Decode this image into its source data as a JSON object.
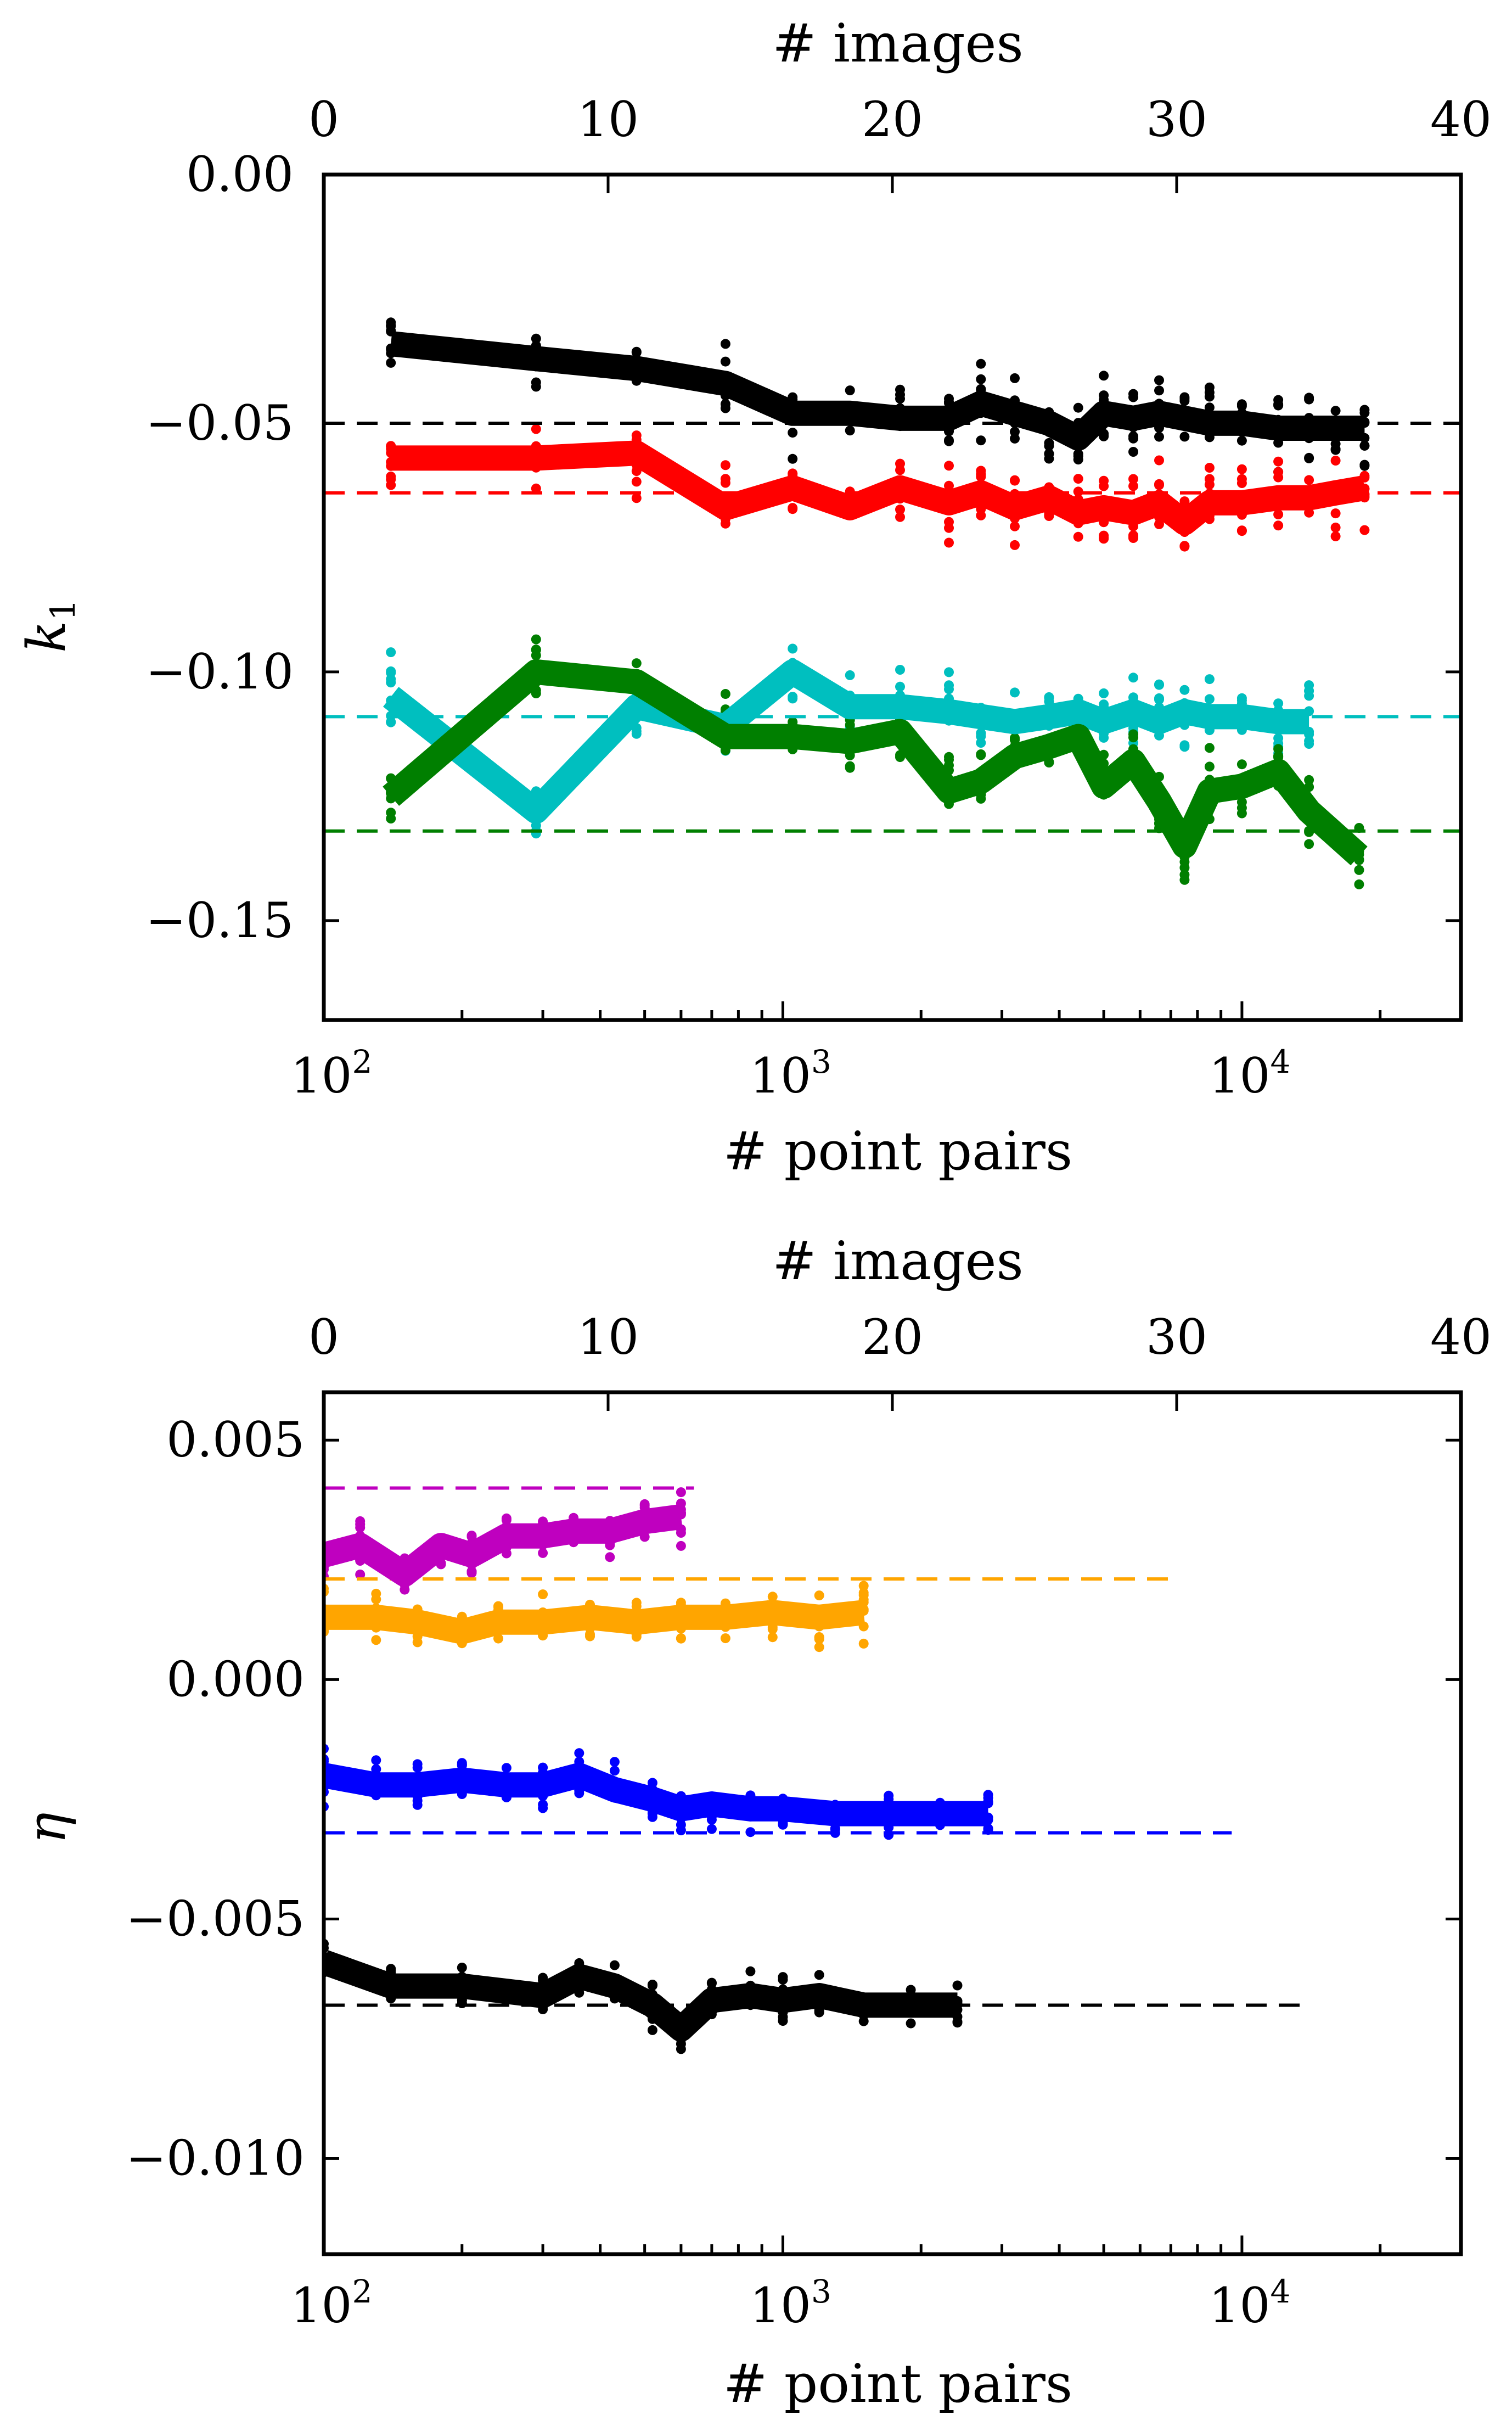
{
  "chart_data": [
    {
      "type": "line",
      "panel": "top",
      "ylabel": "k1",
      "ylabel_base": "k",
      "ylabel_sub": "1",
      "xlabel": "# point pairs",
      "top_xlabel": "# images",
      "xscale": "log",
      "xlim": [
        100,
        30000
      ],
      "ylim": [
        -0.17,
        0.0
      ],
      "yticks": [
        0.0,
        -0.05,
        -0.1,
        -0.15
      ],
      "ytick_labels": [
        "0.00",
        "−0.05",
        "−0.10",
        "−0.15"
      ],
      "xticks": [
        100,
        1000,
        10000
      ],
      "xtick_labels": [
        {
          "base": "10",
          "exp": "2"
        },
        {
          "base": "10",
          "exp": "3"
        },
        {
          "base": "10",
          "exp": "4"
        }
      ],
      "top_xlim": [
        0,
        40
      ],
      "top_xticks": [
        0,
        10,
        20,
        30,
        40
      ],
      "top_xtick_labels": [
        "0",
        "10",
        "20",
        "30",
        "40"
      ],
      "reference_lines": [
        {
          "color": "#000000",
          "y": -0.05
        },
        {
          "color": "#ff0000",
          "y": -0.064
        },
        {
          "color": "#00bfbf",
          "y": -0.109
        },
        {
          "color": "#007f00",
          "y": -0.132
        }
      ],
      "series": [
        {
          "name": "black",
          "color": "#000000",
          "x": [
            140,
            290,
            480,
            750,
            1050,
            1400,
            1800,
            2300,
            2700,
            3200,
            3800,
            4400,
            5000,
            5800,
            6600,
            7500,
            8500,
            10000,
            12000,
            14000,
            16000,
            18500
          ],
          "y": [
            -0.034,
            -0.037,
            -0.039,
            -0.042,
            -0.048,
            -0.048,
            -0.049,
            -0.049,
            -0.046,
            -0.048,
            -0.05,
            -0.053,
            -0.048,
            -0.049,
            -0.048,
            -0.049,
            -0.05,
            -0.05,
            -0.051,
            -0.051,
            -0.051,
            -0.051
          ]
        },
        {
          "name": "red",
          "color": "#ff0000",
          "x": [
            140,
            290,
            480,
            750,
            1050,
            1400,
            1800,
            2300,
            2700,
            3200,
            3800,
            4400,
            5000,
            5800,
            6600,
            7500,
            8500,
            10000,
            12000,
            14000,
            16000,
            18500
          ],
          "y": [
            -0.057,
            -0.057,
            -0.056,
            -0.067,
            -0.063,
            -0.067,
            -0.063,
            -0.066,
            -0.064,
            -0.067,
            -0.065,
            -0.068,
            -0.067,
            -0.068,
            -0.066,
            -0.07,
            -0.066,
            -0.066,
            -0.065,
            -0.065,
            -0.064,
            -0.063
          ]
        },
        {
          "name": "cyan",
          "color": "#00bfbf",
          "x": [
            140,
            290,
            480,
            750,
            1050,
            1400,
            1800,
            2300,
            2700,
            3200,
            3800,
            4400,
            5000,
            5800,
            6600,
            7500,
            8500,
            10000,
            12000,
            14000
          ],
          "y": [
            -0.105,
            -0.128,
            -0.107,
            -0.111,
            -0.1,
            -0.107,
            -0.107,
            -0.108,
            -0.109,
            -0.11,
            -0.109,
            -0.108,
            -0.11,
            -0.108,
            -0.11,
            -0.108,
            -0.109,
            -0.109,
            -0.11,
            -0.11
          ]
        },
        {
          "name": "green",
          "color": "#007f00",
          "x": [
            140,
            290,
            480,
            750,
            1050,
            1400,
            1800,
            2300,
            2700,
            3200,
            3800,
            4400,
            5000,
            5800,
            6600,
            7500,
            8500,
            10000,
            12000,
            14000,
            18000
          ],
          "y": [
            -0.125,
            -0.1,
            -0.102,
            -0.113,
            -0.113,
            -0.114,
            -0.112,
            -0.124,
            -0.122,
            -0.117,
            -0.115,
            -0.113,
            -0.123,
            -0.118,
            -0.126,
            -0.135,
            -0.124,
            -0.123,
            -0.12,
            -0.128,
            -0.137
          ]
        }
      ]
    },
    {
      "type": "line",
      "panel": "bottom",
      "ylabel": "η",
      "xlabel": "# point pairs",
      "top_xlabel": "# images",
      "xscale": "log",
      "xlim": [
        100,
        30000
      ],
      "ylim": [
        -0.012,
        0.006
      ],
      "yticks": [
        0.005,
        0.0,
        -0.005,
        -0.01
      ],
      "ytick_labels": [
        "0.005",
        "0.000",
        "−0.005",
        "−0.010"
      ],
      "xticks": [
        100,
        1000,
        10000
      ],
      "xtick_labels": [
        {
          "base": "10",
          "exp": "2"
        },
        {
          "base": "10",
          "exp": "3"
        },
        {
          "base": "10",
          "exp": "4"
        }
      ],
      "top_xlim": [
        0,
        40
      ],
      "top_xticks": [
        0,
        10,
        20,
        30,
        40
      ],
      "top_xtick_labels": [
        "0",
        "10",
        "20",
        "30",
        "40"
      ],
      "reference_lines": [
        {
          "color": "#bf00bf",
          "y": 0.004,
          "x_end": 640
        },
        {
          "color": "#ffa500",
          "y": 0.0021,
          "x_end": 7000
        },
        {
          "color": "#0000ff",
          "y": -0.0032,
          "x_end": 9500
        },
        {
          "color": "#000000",
          "y": -0.0068,
          "x_end": 13500
        }
      ],
      "series": [
        {
          "name": "magenta",
          "color": "#bf00bf",
          "x": [
            100,
            120,
            150,
            180,
            210,
            250,
            300,
            350,
            420,
            500,
            600
          ],
          "y": [
            0.0026,
            0.0028,
            0.0022,
            0.0028,
            0.0026,
            0.003,
            0.003,
            0.0031,
            0.0031,
            0.0033,
            0.0034
          ]
        },
        {
          "name": "orange",
          "color": "#ffa500",
          "x": [
            100,
            130,
            160,
            200,
            240,
            300,
            380,
            480,
            600,
            750,
            950,
            1200,
            1500
          ],
          "y": [
            0.0013,
            0.0013,
            0.0012,
            0.001,
            0.0012,
            0.0012,
            0.0013,
            0.0012,
            0.0013,
            0.0013,
            0.0014,
            0.0013,
            0.0014
          ]
        },
        {
          "name": "blue",
          "color": "#0000ff",
          "x": [
            100,
            130,
            160,
            200,
            250,
            300,
            360,
            430,
            520,
            600,
            700,
            850,
            1000,
            1300,
            1700,
            2200,
            2800
          ],
          "y": [
            -0.002,
            -0.0022,
            -0.0022,
            -0.0021,
            -0.0022,
            -0.0022,
            -0.002,
            -0.0023,
            -0.0025,
            -0.0027,
            -0.0026,
            -0.0027,
            -0.0027,
            -0.0028,
            -0.0028,
            -0.0028,
            -0.0028
          ]
        },
        {
          "name": "black",
          "color": "#000000",
          "x": [
            100,
            140,
            200,
            300,
            360,
            430,
            520,
            600,
            700,
            850,
            1000,
            1200,
            1500,
            1900,
            2400
          ],
          "y": [
            -0.0059,
            -0.0064,
            -0.0064,
            -0.0066,
            -0.0062,
            -0.0064,
            -0.0068,
            -0.0073,
            -0.0067,
            -0.0066,
            -0.0067,
            -0.0066,
            -0.0068,
            -0.0068,
            -0.0068
          ]
        }
      ]
    }
  ]
}
